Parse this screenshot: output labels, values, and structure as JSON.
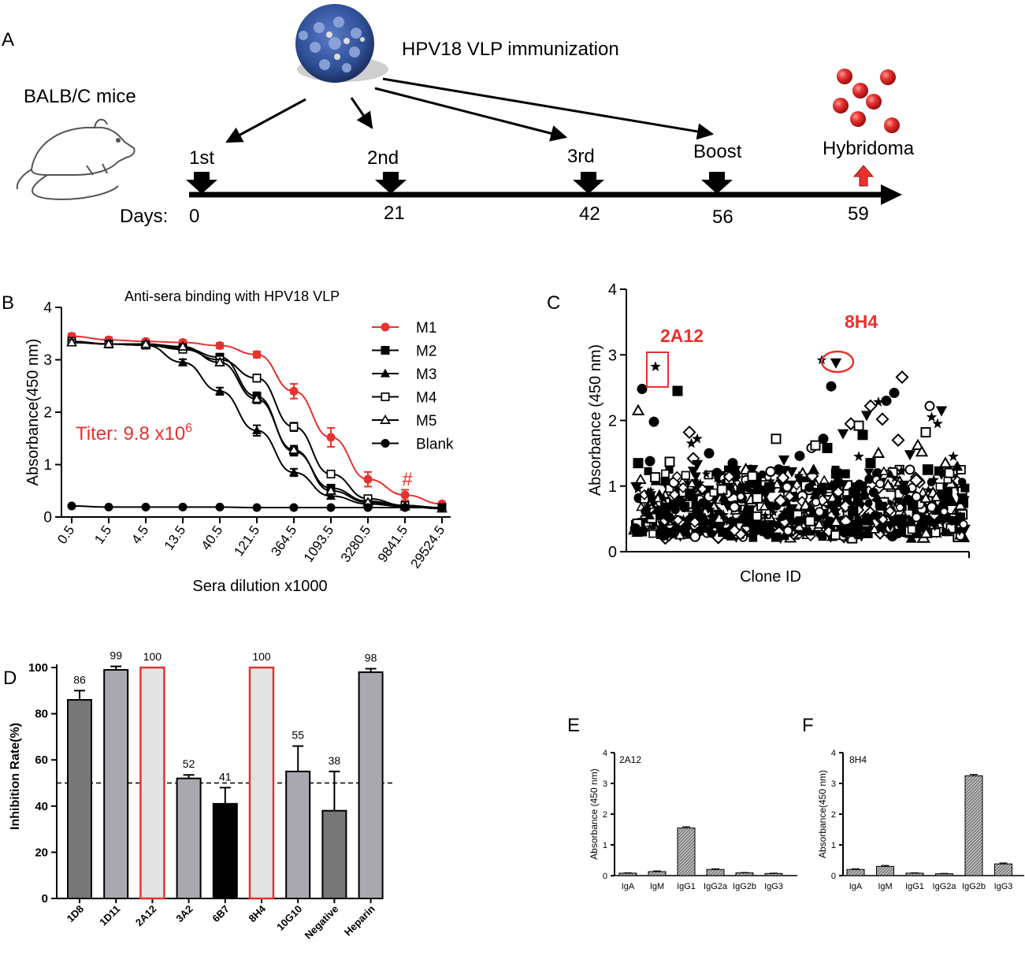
{
  "panels": {
    "A": "A",
    "B": "B",
    "C": "C",
    "D": "D",
    "E": "E",
    "F": "F"
  },
  "colors": {
    "red": "#e8312f",
    "black": "#000000",
    "virus_blue": "#2f4f96",
    "bar_dark": "#777777",
    "bar_mid": "#a8a8ae",
    "bar_light": "#e4e4e4"
  },
  "schematic": {
    "mouse_label": "BALB/C mice",
    "immunization_label": "HPV18 VLP immunization",
    "days_label": "Days:",
    "steps": [
      {
        "label": "1st",
        "day": "0"
      },
      {
        "label": "2nd",
        "day": "21"
      },
      {
        "label": "3rd",
        "day": "42"
      },
      {
        "label": "Boost",
        "day": "56"
      },
      {
        "label": "Hybridoma",
        "day": "59"
      }
    ]
  },
  "chart_data": [
    {
      "panel": "B",
      "type": "line",
      "title": "Anti-sera binding with HPV18 VLP",
      "xlabel": "Sera dilution x1000",
      "ylabel": "Absorbance(450 nm)",
      "ylim": [
        0,
        4
      ],
      "yticks": [
        "0",
        "1",
        "2",
        "3",
        "4"
      ],
      "categories": [
        "0.5",
        "1.5",
        "4.5",
        "13.5",
        "40.5",
        "121.5",
        "364.5",
        "1093.5",
        "3280.5",
        "9841.5",
        "29524.5"
      ],
      "annotation": {
        "text": "Titer: 9.8 x10",
        "superscript": "6"
      },
      "marker_text": "#",
      "series": [
        {
          "name": "M1",
          "marker": "circle-red",
          "values": [
            3.45,
            3.38,
            3.35,
            3.33,
            3.27,
            3.1,
            2.4,
            1.52,
            0.72,
            0.42,
            0.25
          ],
          "errors": [
            0.05,
            0.05,
            0.04,
            0.04,
            0.05,
            0.06,
            0.14,
            0.18,
            0.14,
            0.1,
            0.04
          ]
        },
        {
          "name": "M2",
          "marker": "square",
          "values": [
            3.35,
            3.3,
            3.28,
            3.22,
            3.05,
            2.3,
            1.25,
            0.55,
            0.3,
            0.22,
            0.18
          ],
          "errors": [
            0.05,
            0.05,
            0.04,
            0.05,
            0.06,
            0.08,
            0.08,
            0.06,
            0.05,
            0.04,
            0.03
          ]
        },
        {
          "name": "M3",
          "marker": "triangle",
          "values": [
            3.33,
            3.3,
            3.28,
            2.95,
            2.4,
            1.65,
            0.85,
            0.4,
            0.25,
            0.2,
            0.16
          ],
          "errors": [
            0.05,
            0.05,
            0.05,
            0.06,
            0.07,
            0.1,
            0.07,
            0.05,
            0.04,
            0.03,
            0.03
          ]
        },
        {
          "name": "M4",
          "marker": "square-open",
          "values": [
            3.35,
            3.3,
            3.28,
            3.2,
            3.0,
            2.65,
            1.72,
            0.82,
            0.35,
            0.22,
            0.17
          ],
          "errors": [
            0.05,
            0.05,
            0.04,
            0.05,
            0.06,
            0.07,
            0.08,
            0.06,
            0.05,
            0.04,
            0.03
          ]
        },
        {
          "name": "M5",
          "marker": "triangle-open",
          "values": [
            3.33,
            3.3,
            3.3,
            3.25,
            2.95,
            2.25,
            1.28,
            0.5,
            0.28,
            0.2,
            0.16
          ],
          "errors": [
            0.05,
            0.05,
            0.04,
            0.05,
            0.06,
            0.08,
            0.08,
            0.06,
            0.04,
            0.03,
            0.03
          ]
        },
        {
          "name": "Blank",
          "marker": "circle",
          "values": [
            0.21,
            0.19,
            0.19,
            0.19,
            0.19,
            0.18,
            0.18,
            0.18,
            0.18,
            0.18,
            0.18
          ],
          "errors": [
            0.02,
            0.02,
            0.02,
            0.02,
            0.02,
            0.02,
            0.02,
            0.02,
            0.02,
            0.02,
            0.02
          ]
        }
      ]
    },
    {
      "panel": "C",
      "type": "scatter",
      "xlabel": "Clone ID",
      "ylabel": "Absorbance (450 nm)",
      "ylim": [
        0,
        4
      ],
      "yticks": [
        "0",
        "1",
        "2",
        "3",
        "4"
      ],
      "highlights": [
        {
          "label": "2A12",
          "value": 2.82,
          "marker": "star",
          "box": "rectangle"
        },
        {
          "label": "8H4",
          "value": 2.88,
          "marker": "triangle-down",
          "box": "ellipse"
        }
      ],
      "points": [
        {
          "x": 2,
          "y": 2.48,
          "m": "circle"
        },
        {
          "x": 1,
          "y": 2.15,
          "m": "triangle-open"
        },
        {
          "x": 5,
          "y": 1.98,
          "m": "circle"
        },
        {
          "x": 11,
          "y": 2.45,
          "m": "square"
        },
        {
          "x": 14,
          "y": 1.82,
          "m": "diamond-open"
        },
        {
          "x": 16,
          "y": 1.72,
          "m": "star"
        },
        {
          "x": 14.5,
          "y": 1.65,
          "m": "star"
        },
        {
          "x": 1,
          "y": 1.35,
          "m": "square"
        },
        {
          "x": 4,
          "y": 1.38,
          "m": "circle"
        },
        {
          "x": 9,
          "y": 1.37,
          "m": "square-open"
        },
        {
          "x": 15,
          "y": 1.42,
          "m": "diamond-open"
        },
        {
          "x": 16,
          "y": 1.33,
          "m": "triangle-down"
        },
        {
          "x": 19,
          "y": 1.5,
          "m": "circle"
        },
        {
          "x": 21,
          "y": 1.2,
          "m": "circle"
        },
        {
          "x": 25,
          "y": 1.35,
          "m": "circle"
        },
        {
          "x": 26,
          "y": 1.28,
          "m": "star"
        },
        {
          "x": 30,
          "y": 1.15,
          "m": "square-open"
        },
        {
          "x": 36,
          "y": 1.72,
          "m": "square-open"
        },
        {
          "x": 38,
          "y": 1.4,
          "m": "triangle-down"
        },
        {
          "x": 40,
          "y": 1.22,
          "m": "triangle-down"
        },
        {
          "x": 42,
          "y": 1.46,
          "m": "circle"
        },
        {
          "x": 45,
          "y": 1.58,
          "m": "circle-open"
        },
        {
          "x": 46,
          "y": 1.62,
          "m": "square-open"
        },
        {
          "x": 48,
          "y": 1.72,
          "m": "circle"
        },
        {
          "x": 49,
          "y": 1.58,
          "m": "square"
        },
        {
          "x": 50,
          "y": 2.52,
          "m": "circle"
        },
        {
          "x": 53,
          "y": 1.8,
          "m": "triangle-down"
        },
        {
          "x": 55,
          "y": 1.95,
          "m": "diamond-open"
        },
        {
          "x": 57,
          "y": 1.92,
          "m": "square-open"
        },
        {
          "x": 58,
          "y": 1.78,
          "m": "square"
        },
        {
          "x": 59,
          "y": 2.08,
          "m": "triangle-down"
        },
        {
          "x": 60,
          "y": 2.22,
          "m": "diamond-open"
        },
        {
          "x": 62,
          "y": 2.28,
          "m": "star"
        },
        {
          "x": 63,
          "y": 2.02,
          "m": "diamond-open"
        },
        {
          "x": 64,
          "y": 2.3,
          "m": "circle"
        },
        {
          "x": 66,
          "y": 2.42,
          "m": "circle"
        },
        {
          "x": 68,
          "y": 2.66,
          "m": "diamond-open"
        },
        {
          "x": 62,
          "y": 1.5,
          "m": "triangle-open"
        },
        {
          "x": 60,
          "y": 1.35,
          "m": "square"
        },
        {
          "x": 57,
          "y": 1.45,
          "m": "star"
        },
        {
          "x": 67,
          "y": 1.7,
          "m": "diamond-open"
        },
        {
          "x": 70,
          "y": 1.48,
          "m": "triangle-down"
        },
        {
          "x": 72,
          "y": 1.62,
          "m": "triangle-open"
        },
        {
          "x": 73,
          "y": 1.52,
          "m": "triangle-open"
        },
        {
          "x": 74,
          "y": 1.82,
          "m": "square-open"
        },
        {
          "x": 75,
          "y": 2.22,
          "m": "circle-open"
        },
        {
          "x": 75.5,
          "y": 2.05,
          "m": "star"
        },
        {
          "x": 77,
          "y": 1.95,
          "m": "star"
        },
        {
          "x": 78,
          "y": 2.15,
          "m": "triangle-down"
        },
        {
          "x": 70,
          "y": 1.25,
          "m": "circle-open"
        },
        {
          "x": 79,
          "y": 1.35,
          "m": "triangle-open"
        },
        {
          "x": 80,
          "y": 1.2,
          "m": "square-open"
        },
        {
          "x": 81,
          "y": 1.45,
          "m": "star"
        },
        {
          "x": 82,
          "y": 1.3,
          "m": "triangle"
        }
      ],
      "cluster": {
        "x_range": [
          0,
          84
        ],
        "y_range": [
          0.15,
          1.25
        ]
      }
    },
    {
      "panel": "D",
      "type": "bar",
      "ylabel": "Inhibition Rate(%)",
      "ylim": [
        0,
        100
      ],
      "yticks": [
        "0",
        "20",
        "40",
        "60",
        "80",
        "100"
      ],
      "reference_line": 50,
      "categories": [
        "1D8",
        "1D11",
        "2A12",
        "3A2",
        "6B7",
        "8H4",
        "10G10",
        "Negative",
        "Heparin"
      ],
      "values": [
        86,
        99,
        100,
        52,
        41,
        100,
        55,
        38,
        98
      ],
      "labels": [
        "86",
        "99",
        "100",
        "52",
        "41",
        "100",
        "55",
        "38",
        "98"
      ],
      "errors": [
        4,
        1.5,
        0,
        1.5,
        7,
        0,
        11,
        17,
        1.5
      ],
      "fills": [
        "dark",
        "mid",
        "light-red",
        "mid",
        "black",
        "light-red",
        "mid",
        "dark",
        "mid"
      ]
    },
    {
      "panel": "E",
      "type": "bar",
      "title": "2A12",
      "ylabel": "Absorbance (450 nm)",
      "ylim": [
        0,
        4
      ],
      "yticks": [
        "0",
        "1",
        "2",
        "3",
        "4"
      ],
      "categories": [
        "IgA",
        "IgM",
        "IgG1",
        "IgG2a",
        "IgG2b",
        "IgG3"
      ],
      "values": [
        0.08,
        0.13,
        1.55,
        0.2,
        0.09,
        0.07
      ],
      "errors": [
        0.01,
        0.02,
        0.04,
        0.02,
        0.01,
        0.01
      ]
    },
    {
      "panel": "F",
      "type": "bar",
      "title": "8H4",
      "ylabel": "Absorbance(450 nm)",
      "ylim": [
        0,
        4
      ],
      "yticks": [
        "0",
        "1",
        "2",
        "3",
        "4"
      ],
      "categories": [
        "IgA",
        "IgM",
        "IgG1",
        "IgG2a",
        "IgG2b",
        "IgG3"
      ],
      "values": [
        0.2,
        0.3,
        0.08,
        0.06,
        3.25,
        0.38
      ],
      "errors": [
        0.02,
        0.03,
        0.01,
        0.01,
        0.04,
        0.03
      ]
    }
  ]
}
